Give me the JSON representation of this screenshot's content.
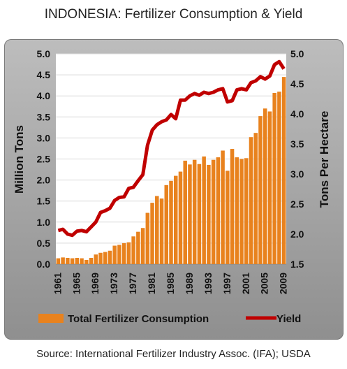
{
  "title": "INDONESIA:  Fertilizer Consumption & Yield",
  "source": "Source:  International Fertilizer Industry Assoc. (IFA); USDA",
  "colors": {
    "bar": "#e8821e",
    "line": "#c00000",
    "panel": "#a8a8a8"
  },
  "chart_data": {
    "type": "bar",
    "title": "INDONESIA:  Fertilizer Consumption & Yield",
    "x": [
      1961,
      1962,
      1963,
      1964,
      1965,
      1966,
      1967,
      1968,
      1969,
      1970,
      1971,
      1972,
      1973,
      1974,
      1975,
      1976,
      1977,
      1978,
      1979,
      1980,
      1981,
      1982,
      1983,
      1984,
      1985,
      1986,
      1987,
      1988,
      1989,
      1990,
      1991,
      1992,
      1993,
      1994,
      1995,
      1996,
      1997,
      1998,
      1999,
      2000,
      2001,
      2002,
      2003,
      2004,
      2005,
      2006,
      2007,
      2008,
      2009
    ],
    "xtick_labels": [
      "1961",
      "1965",
      "1969",
      "1973",
      "1977",
      "1981",
      "1985",
      "1989",
      "1993",
      "1997",
      "2001",
      "2005",
      "2009"
    ],
    "ylabel": "Million Tons",
    "y2label": "Tons Per Hectare",
    "ylim": [
      0,
      5.0
    ],
    "y2lim": [
      1.5,
      5.0
    ],
    "yticks": [
      "0.0",
      "0.5",
      "1.0",
      "1.5",
      "2.0",
      "2.5",
      "3.0",
      "3.5",
      "4.0",
      "4.5",
      "5.0"
    ],
    "y2ticks": [
      "1.5",
      "2.0",
      "2.5",
      "3.0",
      "3.5",
      "4.0",
      "4.5",
      "5.0"
    ],
    "legend_position": "bottom",
    "series": [
      {
        "name": "Total Fertilizer Consumption",
        "axis": "left",
        "kind": "bar",
        "values": [
          0.14,
          0.16,
          0.15,
          0.14,
          0.15,
          0.14,
          0.1,
          0.15,
          0.23,
          0.27,
          0.29,
          0.32,
          0.44,
          0.46,
          0.5,
          0.52,
          0.66,
          0.77,
          0.86,
          1.22,
          1.46,
          1.62,
          1.56,
          1.88,
          1.98,
          2.1,
          2.2,
          2.46,
          2.37,
          2.48,
          2.38,
          2.56,
          2.36,
          2.48,
          2.54,
          2.7,
          2.22,
          2.74,
          2.54,
          2.5,
          2.52,
          3.02,
          3.12,
          3.52,
          3.7,
          3.63,
          4.07,
          4.1,
          4.45
        ]
      },
      {
        "name": "Yield",
        "axis": "right",
        "kind": "line",
        "values": [
          2.06,
          2.08,
          2.0,
          1.98,
          2.05,
          2.06,
          2.04,
          2.12,
          2.2,
          2.36,
          2.39,
          2.43,
          2.56,
          2.61,
          2.62,
          2.76,
          2.78,
          2.89,
          2.99,
          3.48,
          3.73,
          3.82,
          3.87,
          3.9,
          3.99,
          3.92,
          4.23,
          4.23,
          4.3,
          4.34,
          4.31,
          4.36,
          4.34,
          4.36,
          4.4,
          4.42,
          4.2,
          4.22,
          4.4,
          4.42,
          4.4,
          4.52,
          4.55,
          4.62,
          4.58,
          4.63,
          4.82,
          4.87,
          4.75
        ]
      }
    ]
  }
}
